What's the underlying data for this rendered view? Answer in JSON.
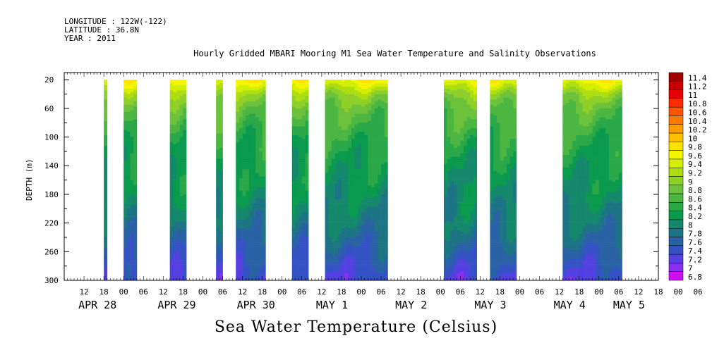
{
  "header": {
    "longitude": "LONGITUDE : 122W(-122)",
    "latitude": "LATITUDE : 36.8N",
    "year": "YEAR : 2011"
  },
  "chart_data": {
    "type": "heatmap",
    "title": "Hourly Gridded MBARI Mooring M1 Sea Water Temperature and Salinity Observations",
    "subtitle": "Sea Water Temperature (Celsius)",
    "ylabel": "DEPTH (m)",
    "xlabel": "",
    "ylim": [
      300,
      10
    ],
    "xlim_hours": [
      -18,
      162
    ],
    "y_ticks": [
      20,
      60,
      100,
      140,
      180,
      220,
      260,
      300
    ],
    "x_hour_ticks": [
      "12",
      "18",
      "00",
      "06",
      "12",
      "18",
      "00",
      "06",
      "12",
      "18",
      "00",
      "06",
      "12",
      "18",
      "00",
      "06",
      "12",
      "18",
      "00",
      "06",
      "12",
      "18",
      "00",
      "06",
      "12",
      "18",
      "00",
      "06",
      "12",
      "18",
      "00",
      "06"
    ],
    "x_date_labels": [
      {
        "hour": -12,
        "label": "APR 28"
      },
      {
        "hour": 12,
        "label": "APR 29"
      },
      {
        "hour": 36,
        "label": "APR 30"
      },
      {
        "hour": 60,
        "label": "MAY  1"
      },
      {
        "hour": 84,
        "label": "MAY  2"
      },
      {
        "hour": 108,
        "label": "MAY  3"
      },
      {
        "hour": 132,
        "label": "MAY  4"
      },
      {
        "hour": 150,
        "label": "MAY  5"
      }
    ],
    "colorbar_levels": [
      {
        "label": "11.4",
        "color": "#a00000"
      },
      {
        "label": "11.2",
        "color": "#c80000"
      },
      {
        "label": "11",
        "color": "#e60000"
      },
      {
        "label": "10.8",
        "color": "#ff2a00"
      },
      {
        "label": "10.6",
        "color": "#ff5500"
      },
      {
        "label": "10.4",
        "color": "#ff7a00"
      },
      {
        "label": "10.2",
        "color": "#ff9a00"
      },
      {
        "label": "10",
        "color": "#ffbf00"
      },
      {
        "label": "9.8",
        "color": "#ffe100"
      },
      {
        "label": "9.6",
        "color": "#f5f500"
      },
      {
        "label": "9.4",
        "color": "#d4ee00"
      },
      {
        "label": "9.2",
        "color": "#aede10"
      },
      {
        "label": "9",
        "color": "#8ed028"
      },
      {
        "label": "8.8",
        "color": "#6cc23a"
      },
      {
        "label": "8.6",
        "color": "#4cb640"
      },
      {
        "label": "8.4",
        "color": "#2aa848"
      },
      {
        "label": "8.2",
        "color": "#0a9a4e"
      },
      {
        "label": "8",
        "color": "#14886a"
      },
      {
        "label": "7.8",
        "color": "#1c7484"
      },
      {
        "label": "7.6",
        "color": "#2862a4"
      },
      {
        "label": "7.4",
        "color": "#3452c4"
      },
      {
        "label": "7.2",
        "color": "#5440e0"
      },
      {
        "label": "7",
        "color": "#8a2ef0"
      },
      {
        "label": "6.8",
        "color": "#cc10f0"
      }
    ],
    "data_blocks_hours": [
      [
        -6,
        -5
      ],
      [
        0,
        4
      ],
      [
        14,
        19
      ],
      [
        28,
        30
      ],
      [
        34,
        43
      ],
      [
        51,
        56
      ],
      [
        61,
        80
      ],
      [
        97,
        107
      ],
      [
        111,
        119
      ],
      [
        133,
        151
      ]
    ],
    "surface_temp_profile": [
      {
        "depth": 20,
        "temp": 9.6
      },
      {
        "depth": 40,
        "temp": 9.0
      },
      {
        "depth": 60,
        "temp": 8.7
      },
      {
        "depth": 80,
        "temp": 8.55
      },
      {
        "depth": 100,
        "temp": 8.4
      },
      {
        "depth": 120,
        "temp": 8.3
      },
      {
        "depth": 140,
        "temp": 8.2
      },
      {
        "depth": 160,
        "temp": 8.15
      },
      {
        "depth": 180,
        "temp": 8.05
      },
      {
        "depth": 200,
        "temp": 7.95
      },
      {
        "depth": 220,
        "temp": 7.85
      },
      {
        "depth": 240,
        "temp": 7.7
      },
      {
        "depth": 260,
        "temp": 7.55
      },
      {
        "depth": 280,
        "temp": 7.4
      },
      {
        "depth": 300,
        "temp": 7.25
      }
    ]
  }
}
